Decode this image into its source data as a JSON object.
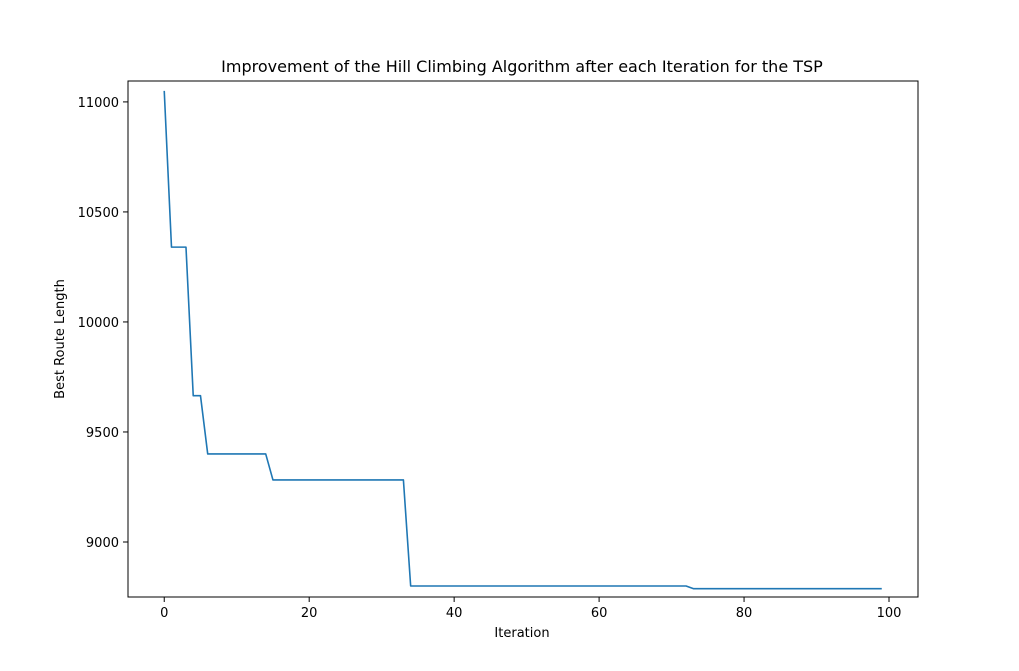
{
  "chart_data": {
    "type": "line",
    "title": "Improvement of the Hill Climbing Algorithm after each Iteration for the TSP",
    "xlabel": "Iteration",
    "ylabel": "Best Route Length",
    "xlim": [
      -5,
      104
    ],
    "ylim": [
      8750,
      11095
    ],
    "grid": false,
    "legend": "none",
    "line_color": "#1f77b4",
    "x_ticks": [
      {
        "value": 0,
        "label": "0"
      },
      {
        "value": 20,
        "label": "20"
      },
      {
        "value": 40,
        "label": "40"
      },
      {
        "value": 60,
        "label": "60"
      },
      {
        "value": 80,
        "label": "80"
      },
      {
        "value": 100,
        "label": "100"
      }
    ],
    "y_ticks": [
      {
        "value": 9000,
        "label": "9000"
      },
      {
        "value": 9500,
        "label": "9500"
      },
      {
        "value": 10000,
        "label": "10000"
      },
      {
        "value": 10500,
        "label": "10500"
      },
      {
        "value": 11000,
        "label": "11000"
      }
    ],
    "series": [
      {
        "points": [
          [
            0,
            11050
          ],
          [
            1,
            10340
          ],
          [
            2,
            10340
          ],
          [
            3,
            10340
          ],
          [
            4,
            9665
          ],
          [
            5,
            9665
          ],
          [
            6,
            9400
          ],
          [
            7,
            9400
          ],
          [
            8,
            9400
          ],
          [
            9,
            9400
          ],
          [
            10,
            9400
          ],
          [
            11,
            9400
          ],
          [
            12,
            9400
          ],
          [
            13,
            9400
          ],
          [
            14,
            9400
          ],
          [
            15,
            9282
          ],
          [
            16,
            9282
          ],
          [
            17,
            9282
          ],
          [
            18,
            9282
          ],
          [
            19,
            9282
          ],
          [
            20,
            9282
          ],
          [
            21,
            9282
          ],
          [
            22,
            9282
          ],
          [
            23,
            9282
          ],
          [
            24,
            9282
          ],
          [
            25,
            9282
          ],
          [
            26,
            9282
          ],
          [
            27,
            9282
          ],
          [
            28,
            9282
          ],
          [
            29,
            9282
          ],
          [
            30,
            9282
          ],
          [
            31,
            9282
          ],
          [
            32,
            9282
          ],
          [
            33,
            9282
          ],
          [
            34,
            8800
          ],
          [
            72,
            8800
          ],
          [
            73,
            8788
          ],
          [
            99,
            8788
          ]
        ]
      }
    ]
  }
}
